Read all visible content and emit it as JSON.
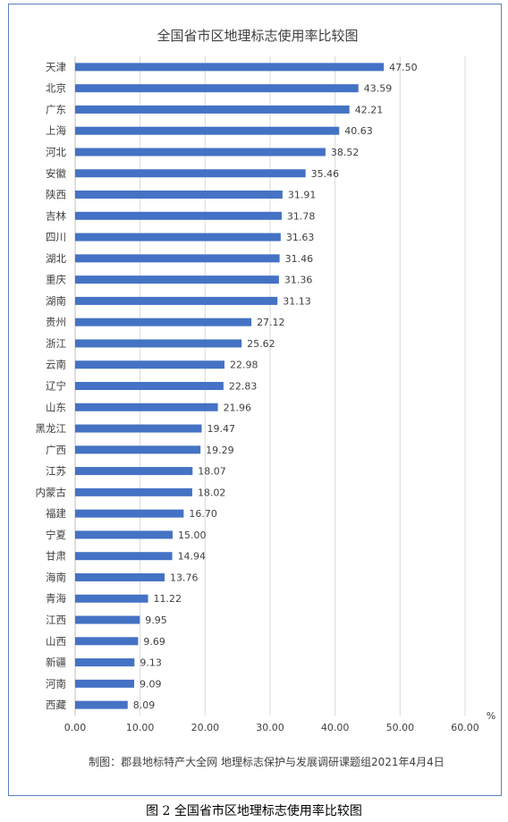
{
  "caption": "图 2  全国省市区地理标志使用率比较图",
  "source": "制图：郡县地标特产大全网 地理标志保护与发展调研课题组2021年4月4日",
  "colors": {
    "bar": "#4472c4",
    "grid": "#d9d9d9",
    "frame": "#5b7fbd",
    "text": "#404040"
  },
  "chart_data": {
    "type": "bar",
    "orientation": "horizontal",
    "title": "全国省市区地理标志使用率比较图",
    "unit": "%",
    "xlim": [
      0,
      60
    ],
    "xticks": [
      "0.00",
      "10.00",
      "20.00",
      "30.00",
      "40.00",
      "50.00",
      "60.00"
    ],
    "grid": true,
    "categories": [
      "天津",
      "北京",
      "广东",
      "上海",
      "河北",
      "安徽",
      "陕西",
      "吉林",
      "四川",
      "湖北",
      "重庆",
      "湖南",
      "贵州",
      "浙江",
      "云南",
      "辽宁",
      "山东",
      "黑龙江",
      "广西",
      "江苏",
      "内蒙古",
      "福建",
      "宁夏",
      "甘肃",
      "海南",
      "青海",
      "江西",
      "山西",
      "新疆",
      "河南",
      "西藏"
    ],
    "values": [
      47.5,
      43.59,
      42.21,
      40.63,
      38.52,
      35.46,
      31.91,
      31.78,
      31.63,
      31.46,
      31.36,
      31.13,
      27.12,
      25.62,
      22.98,
      22.83,
      21.96,
      19.47,
      19.29,
      18.07,
      18.02,
      16.7,
      15.0,
      14.94,
      13.76,
      11.22,
      9.95,
      9.69,
      9.13,
      9.09,
      8.09
    ],
    "value_labels": [
      "47.50",
      "43.59",
      "42.21",
      "40.63",
      "38.52",
      "35.46",
      "31.91",
      "31.78",
      "31.63",
      "31.46",
      "31.36",
      "31.13",
      "27.12",
      "25.62",
      "22.98",
      "22.83",
      "21.96",
      "19.47",
      "19.29",
      "18.07",
      "18.02",
      "16.70",
      "15.00",
      "14.94",
      "13.76",
      "11.22",
      "9.95",
      "9.69",
      "9.13",
      "9.09",
      "8.09"
    ]
  }
}
